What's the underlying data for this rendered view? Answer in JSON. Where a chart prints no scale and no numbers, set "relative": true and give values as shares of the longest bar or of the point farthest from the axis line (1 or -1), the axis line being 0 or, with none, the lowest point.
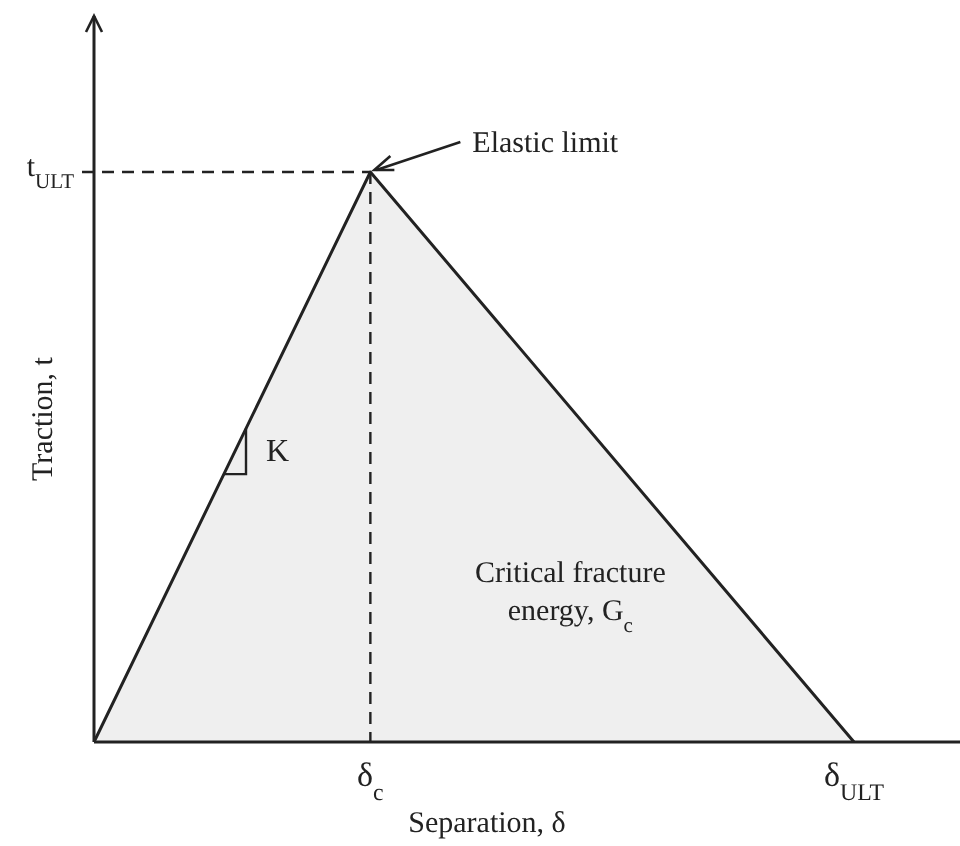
{
  "chart_data": {
    "type": "area",
    "relative": true,
    "xlabel": "Separation, δ",
    "ylabel": "Traction, t",
    "categories": [
      null,
      null,
      null,
      null,
      "δ$_{c}$",
      null,
      null,
      null,
      null,
      null,
      null,
      "δ$_{ULT}$"
    ],
    "values": [
      0,
      null,
      null,
      null,
      1,
      null,
      null,
      null,
      null,
      null,
      null,
      0
    ],
    "color": "#efefef",
    "ref_lines": [
      {
        "axis": "y",
        "value": 1,
        "label": "t$_{ULT}$",
        "line_style": "dashed"
      },
      {
        "axis": "x",
        "value": "δ$_{c}$",
        "line_style": "dashed"
      }
    ],
    "annotations": [
      {
        "text": "Elastic limit",
        "x": "δ$_{c}$",
        "y": 1
      },
      "K",
      "Critical fracture energy, G$_{c}$"
    ]
  }
}
